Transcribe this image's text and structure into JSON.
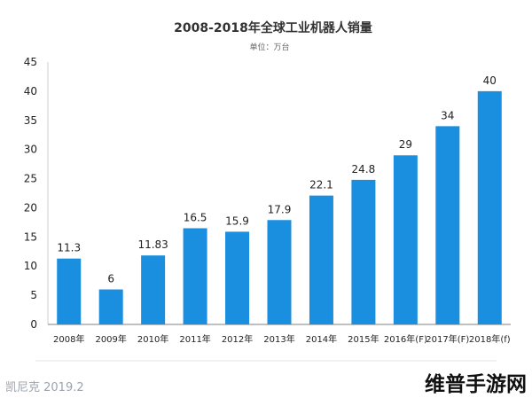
{
  "chart_data": {
    "type": "bar",
    "title": "2008-2018年全球工业机器人销量",
    "subtitle": "单位：万台",
    "categories": [
      "2008年",
      "2009年",
      "2010年",
      "2011年",
      "2012年",
      "2013年",
      "2014年",
      "2015年",
      "2016年(F)",
      "2017年(F)",
      "2018年(f)"
    ],
    "values": [
      11.3,
      6,
      11.83,
      16.5,
      15.9,
      17.9,
      22.1,
      24.8,
      29,
      34,
      40
    ],
    "value_labels": [
      "11.3",
      "6",
      "11.83",
      "16.5",
      "15.9",
      "17.9",
      "22.1",
      "24.8",
      "29",
      "34",
      "40"
    ],
    "ylim": [
      0,
      45
    ],
    "yticks": [
      "0",
      "5",
      "10",
      "15",
      "20",
      "25",
      "30",
      "35",
      "40",
      "45"
    ],
    "xlabel": "",
    "ylabel": "",
    "grid": false,
    "bar_color": "#1a8fe0"
  },
  "footer": {
    "left_text": "凯尼克 2019.2",
    "watermark": "维普手游网"
  }
}
